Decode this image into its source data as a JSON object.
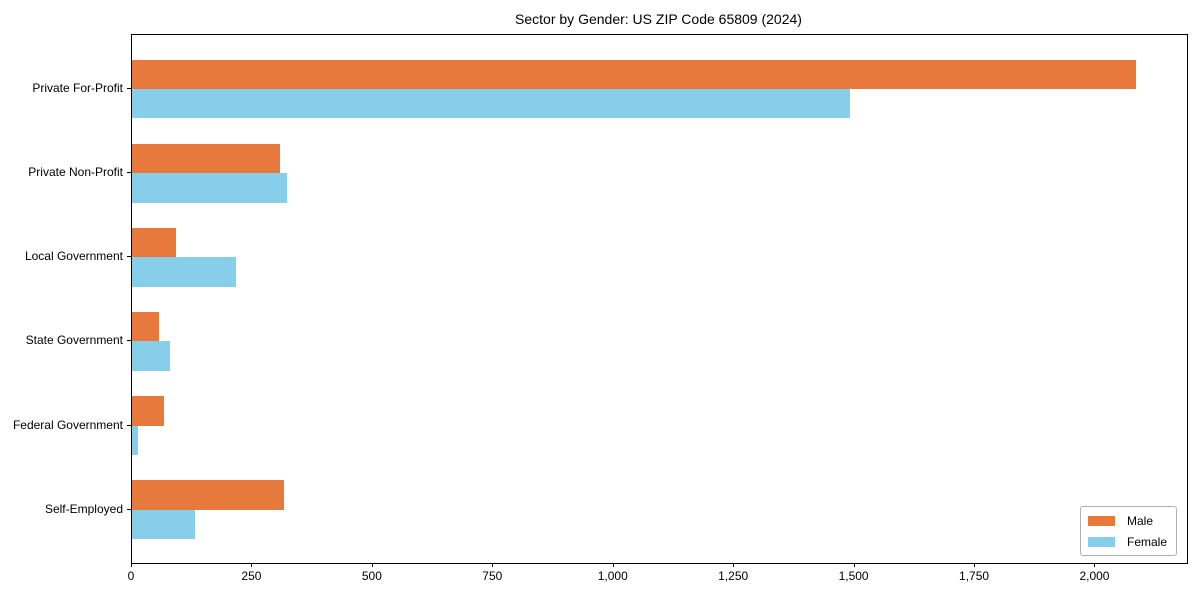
{
  "chart_data": {
    "type": "bar",
    "orientation": "horizontal",
    "title": "Sector by Gender: US ZIP Code 65809 (2024)",
    "categories": [
      "Private For-Profit",
      "Private Non-Profit",
      "Local Government",
      "State Government",
      "Federal Government",
      "Self-Employed"
    ],
    "series": [
      {
        "name": "Male",
        "color": "#e8793d",
        "values": [
          2085,
          308,
          91,
          57,
          66,
          315
        ]
      },
      {
        "name": "Female",
        "color": "#87ceeb",
        "values": [
          1490,
          322,
          216,
          79,
          13,
          131
        ]
      }
    ],
    "xlabel": "",
    "ylabel": "",
    "xlim": [
      0,
      2190
    ],
    "x_ticks": [
      0,
      250,
      500,
      750,
      1000,
      1250,
      1500,
      1750,
      2000
    ],
    "x_tick_labels": [
      "0",
      "250",
      "500",
      "750",
      "1,000",
      "1,250",
      "1,500",
      "1,750",
      "2,000"
    ],
    "grid": false,
    "legend": {
      "position": "lower right"
    },
    "colors": {
      "background": "#ffffff",
      "axis": "#000000",
      "legend_border": "#b0b0b0"
    }
  }
}
